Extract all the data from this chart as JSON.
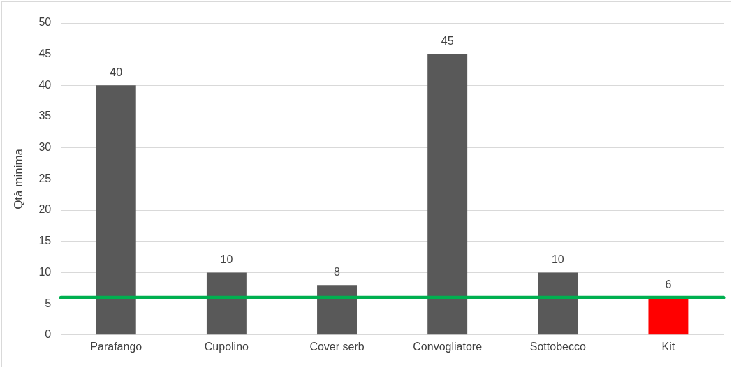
{
  "chart_data": {
    "type": "bar",
    "ylabel": "Qtà minima",
    "categories": [
      "Parafango",
      "Cupolino",
      "Cover serb",
      "Convogliatore",
      "Sottobecco",
      "Kit"
    ],
    "values": [
      40,
      10,
      8,
      45,
      10,
      6
    ],
    "colors": [
      "#595959",
      "#595959",
      "#595959",
      "#595959",
      "#595959",
      "#ff0000"
    ],
    "ylim": [
      0,
      50
    ],
    "yticks": [
      0,
      5,
      10,
      15,
      20,
      25,
      30,
      35,
      40,
      45,
      50
    ],
    "grid": "y",
    "data_labels": true,
    "ref_lines": [
      {
        "axis": "y",
        "value": 6,
        "color": "#00b050"
      }
    ]
  }
}
